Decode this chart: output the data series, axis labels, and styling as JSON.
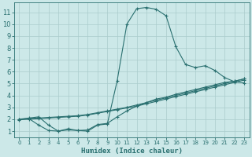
{
  "xlabel": "Humidex (Indice chaleur)",
  "ylabel": "",
  "bg_color": "#cce8e8",
  "grid_color": "#aacccc",
  "line_color": "#2a7070",
  "xlim": [
    -0.5,
    23.5
  ],
  "ylim": [
    0.5,
    11.8
  ],
  "xticks": [
    0,
    1,
    2,
    3,
    4,
    5,
    6,
    7,
    8,
    9,
    10,
    11,
    12,
    13,
    14,
    15,
    16,
    17,
    18,
    19,
    20,
    21,
    22,
    23
  ],
  "yticks": [
    1,
    2,
    3,
    4,
    5,
    6,
    7,
    8,
    9,
    10,
    11
  ],
  "curve1_x": [
    0,
    1,
    2,
    3,
    4,
    5,
    6,
    7,
    8,
    9,
    10,
    11,
    12,
    13,
    14,
    15,
    16,
    17,
    18,
    19,
    20,
    21,
    22,
    23
  ],
  "curve1_y": [
    2.0,
    2.1,
    2.2,
    1.5,
    1.0,
    1.2,
    1.05,
    1.0,
    1.5,
    1.6,
    5.2,
    10.0,
    11.3,
    11.4,
    11.25,
    10.7,
    8.1,
    6.6,
    6.35,
    6.5,
    6.1,
    5.5,
    5.15,
    5.05
  ],
  "curve2_x": [
    0,
    1,
    2,
    3,
    4,
    5,
    6,
    7,
    8,
    9,
    10,
    11,
    12,
    13,
    14,
    15,
    16,
    17,
    18,
    19,
    20,
    21,
    22,
    23
  ],
  "curve2_y": [
    2.0,
    2.05,
    2.1,
    2.15,
    2.2,
    2.25,
    2.3,
    2.4,
    2.55,
    2.7,
    2.85,
    3.0,
    3.2,
    3.4,
    3.6,
    3.8,
    4.0,
    4.2,
    4.4,
    4.6,
    4.8,
    5.0,
    5.2,
    5.4
  ],
  "curve3_x": [
    0,
    1,
    2,
    3,
    4,
    5,
    6,
    7,
    8,
    9,
    10,
    11,
    12,
    13,
    14,
    15,
    16,
    17,
    18,
    19,
    20,
    21,
    22,
    23
  ],
  "curve3_y": [
    1.95,
    2.0,
    2.05,
    2.1,
    2.15,
    2.2,
    2.25,
    2.35,
    2.5,
    2.65,
    2.8,
    2.95,
    3.1,
    3.3,
    3.5,
    3.7,
    3.9,
    4.1,
    4.3,
    4.5,
    4.7,
    4.9,
    5.1,
    5.3
  ],
  "curve4_x": [
    1,
    2,
    3,
    4,
    5,
    6,
    7,
    8,
    9,
    10,
    11,
    12,
    13,
    14,
    15,
    16,
    17,
    18,
    19,
    20,
    21,
    22,
    23
  ],
  "curve4_y": [
    2.05,
    1.5,
    1.05,
    1.0,
    1.1,
    1.05,
    1.1,
    1.55,
    1.65,
    2.2,
    2.7,
    3.1,
    3.4,
    3.7,
    3.85,
    4.1,
    4.3,
    4.5,
    4.7,
    4.9,
    5.1,
    5.2,
    5.4
  ]
}
